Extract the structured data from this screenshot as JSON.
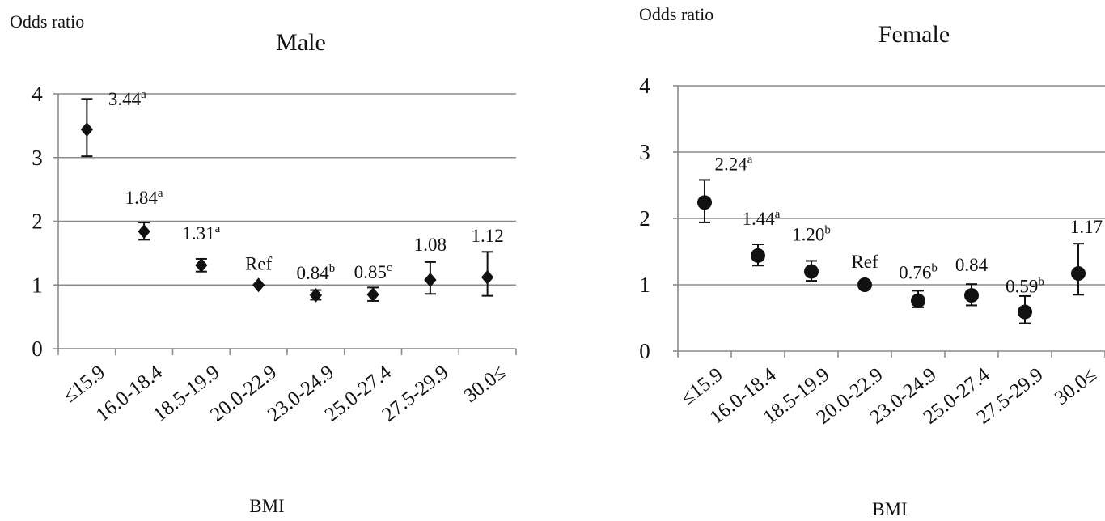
{
  "chart_data": [
    {
      "type": "scatter",
      "marker": "diamond",
      "title": "Male",
      "ylabel": "Odds ratio",
      "xlabel": "BMI",
      "ylim": [
        0,
        4
      ],
      "yticks": [
        "0",
        "1",
        "2",
        "3",
        "4"
      ],
      "grid": true,
      "categories": [
        "≤15.9",
        "16.0-18.4",
        "18.5-19.9",
        "20.0-22.9",
        "23.0-24.9",
        "25.0-27.4",
        "27.5-29.9",
        "30.0≤"
      ],
      "values": [
        3.44,
        1.84,
        1.31,
        1.0,
        0.84,
        0.85,
        1.08,
        1.12
      ],
      "ci_lower": [
        3.02,
        1.71,
        1.21,
        1.0,
        0.77,
        0.75,
        0.86,
        0.83
      ],
      "ci_upper": [
        3.92,
        1.98,
        1.41,
        1.0,
        0.92,
        0.96,
        1.36,
        1.52
      ],
      "labels": [
        {
          "text": "3.44",
          "sup": "a"
        },
        {
          "text": "1.84",
          "sup": "a"
        },
        {
          "text": "1.31",
          "sup": "a"
        },
        {
          "text": "Ref",
          "sup": ""
        },
        {
          "text": "0.84",
          "sup": "b"
        },
        {
          "text": "0.85",
          "sup": "c"
        },
        {
          "text": "1.08",
          "sup": ""
        },
        {
          "text": "1.12",
          "sup": ""
        }
      ]
    },
    {
      "type": "scatter",
      "marker": "circle",
      "title": "Female",
      "ylabel": "Odds ratio",
      "xlabel": "BMI",
      "ylim": [
        0,
        4
      ],
      "yticks": [
        "0",
        "1",
        "2",
        "3",
        "4"
      ],
      "grid": true,
      "categories": [
        "≤15.9",
        "16.0-18.4",
        "18.5-19.9",
        "20.0-22.9",
        "23.0-24.9",
        "25.0-27.4",
        "27.5-29.9",
        "30.0≤"
      ],
      "values": [
        2.24,
        1.44,
        1.2,
        1.0,
        0.76,
        0.84,
        0.59,
        1.17
      ],
      "ci_lower": [
        1.94,
        1.29,
        1.06,
        1.0,
        0.66,
        0.69,
        0.42,
        0.85
      ],
      "ci_upper": [
        2.58,
        1.61,
        1.36,
        1.0,
        0.91,
        1.01,
        0.83,
        1.62
      ],
      "labels": [
        {
          "text": "2.24",
          "sup": "a"
        },
        {
          "text": "1.44",
          "sup": "a"
        },
        {
          "text": "1.20",
          "sup": "b"
        },
        {
          "text": "Ref",
          "sup": ""
        },
        {
          "text": "0.76",
          "sup": "b"
        },
        {
          "text": "0.84",
          "sup": ""
        },
        {
          "text": "0.59",
          "sup": "b"
        },
        {
          "text": "1.17",
          "sup": ""
        }
      ]
    }
  ]
}
